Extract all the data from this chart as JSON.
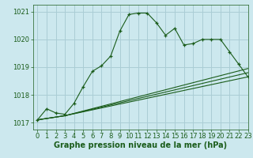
{
  "title": "Graphe pression niveau de la mer (hPa)",
  "bg_color": "#cce8ee",
  "grid_color": "#aacdd5",
  "line_color": "#1a5c1a",
  "xlim": [
    -0.5,
    23
  ],
  "ylim": [
    1016.75,
    1021.25
  ],
  "yticks": [
    1017,
    1018,
    1019,
    1020,
    1021
  ],
  "xticks": [
    0,
    1,
    2,
    3,
    4,
    5,
    6,
    7,
    8,
    9,
    10,
    11,
    12,
    13,
    14,
    15,
    16,
    17,
    18,
    19,
    20,
    21,
    22,
    23
  ],
  "main_line_x": [
    0,
    1,
    2,
    3,
    4,
    5,
    6,
    7,
    8,
    9,
    10,
    11,
    12,
    13,
    14,
    15,
    16,
    17,
    18,
    19,
    20,
    21,
    22,
    23
  ],
  "main_line_y": [
    1017.1,
    1017.5,
    1017.35,
    1017.3,
    1017.7,
    1018.3,
    1018.85,
    1019.05,
    1019.4,
    1020.3,
    1020.9,
    1020.95,
    1020.95,
    1020.6,
    1020.15,
    1020.4,
    1019.8,
    1019.85,
    1020.0,
    1020.0,
    1020.0,
    1019.55,
    1019.1,
    1018.65
  ],
  "trend_lines": [
    {
      "x": [
        0,
        3,
        23
      ],
      "y": [
        1017.1,
        1017.25,
        1018.65
      ]
    },
    {
      "x": [
        0,
        3,
        23
      ],
      "y": [
        1017.1,
        1017.25,
        1018.8
      ]
    },
    {
      "x": [
        0,
        3,
        23
      ],
      "y": [
        1017.1,
        1017.25,
        1018.95
      ]
    }
  ],
  "xlabel_fontsize": 7,
  "tick_fontsize": 6,
  "ylabel_fontsize": 6
}
